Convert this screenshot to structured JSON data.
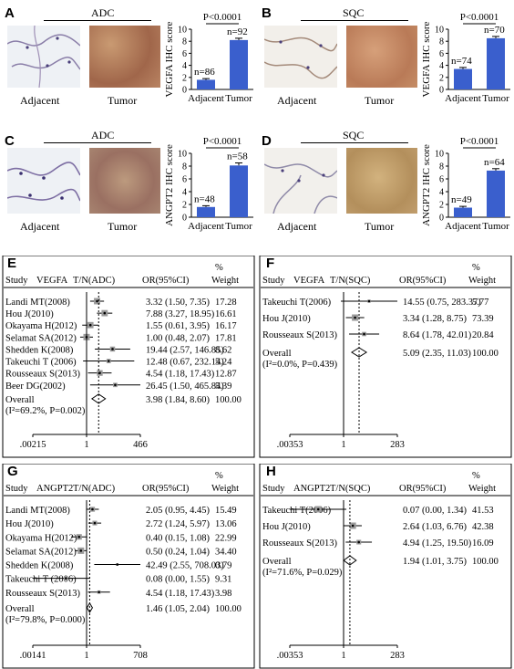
{
  "panels": {
    "A": {
      "letter": "A",
      "group": "ADC",
      "ylabel": "VEGFA IHC score",
      "p": "P<0.0001",
      "ticks": [
        "0",
        "2",
        "4",
        "6",
        "8",
        "10"
      ],
      "cats": [
        "Adjacent",
        "Tumor"
      ],
      "img_labels": [
        "Adjacent",
        "Tumor"
      ],
      "n": [
        "n=86",
        "n=92"
      ]
    },
    "B": {
      "letter": "B",
      "group": "SQC",
      "ylabel": "VEGFA IHC score",
      "p": "P<0.0001",
      "ticks": [
        "0",
        "2",
        "4",
        "6",
        "8",
        "10"
      ],
      "cats": [
        "Adjacent",
        "Tumor"
      ],
      "img_labels": [
        "Adjacent",
        "Tumor"
      ],
      "n": [
        "n=74",
        "n=70"
      ]
    },
    "C": {
      "letter": "C",
      "group": "ADC",
      "ylabel": "ANGPT2 IHC score",
      "p": "P<0.0001",
      "ticks": [
        "0",
        "2",
        "4",
        "6",
        "8",
        "10"
      ],
      "cats": [
        "Adjacent",
        "Tumor"
      ],
      "img_labels": [
        "Adjacent",
        "Tumor"
      ],
      "n": [
        "n=48",
        "n=58"
      ]
    },
    "D": {
      "letter": "D",
      "group": "SQC",
      "ylabel": "ANGPT2 IHC score",
      "p": "P<0.0001",
      "ticks": [
        "0",
        "2",
        "4",
        "6",
        "8",
        "10"
      ],
      "cats": [
        "Adjacent",
        "Tumor"
      ],
      "img_labels": [
        "Adjacent",
        "Tumor"
      ],
      "n": [
        "n=49",
        "n=64"
      ]
    }
  },
  "forest": {
    "E": {
      "letter": "E",
      "header": {
        "study": "Study",
        "gene": "VEGFA",
        "tn": "T/N(ADC)",
        "or": "OR(95%CI)",
        "pct": "%",
        "weight": "Weight"
      },
      "axis": {
        "left": ".00215",
        "mid": "1",
        "right": "466"
      }
    },
    "F": {
      "letter": "F",
      "header": {
        "study": "Study",
        "gene": "VEGFA",
        "tn": "T/N(SQC)",
        "or": "OR(95%CI)",
        "pct": "%",
        "weight": "Weight"
      },
      "axis": {
        "left": ".00353",
        "mid": "1",
        "right": "283"
      }
    },
    "G": {
      "letter": "G",
      "header": {
        "study": "Study",
        "gene": "ANGPT2",
        "tn": "T/N(ADC)",
        "or": "OR(95%CI)",
        "pct": "%",
        "weight": "Weight"
      },
      "axis": {
        "left": ".00141",
        "mid": "1",
        "right": "708"
      }
    },
    "H": {
      "letter": "H",
      "header": {
        "study": "Study",
        "gene": "ANGPT2",
        "tn": "T/N(SQC)",
        "or": "OR(95%CI)",
        "pct": "%",
        "weight": "Weight"
      },
      "axis": {
        "left": ".00353",
        "mid": "1",
        "right": "283"
      }
    }
  },
  "chart_data": [
    {
      "type": "bar",
      "panel": "A",
      "categories": [
        "Adjacent",
        "Tumor"
      ],
      "values": [
        1.6,
        8.2
      ],
      "errors": [
        0.2,
        0.3
      ],
      "ylabel": "VEGFA IHC score",
      "ylim": [
        0,
        10
      ],
      "n": [
        "n=86",
        "n=92"
      ],
      "annotation": "P<0.0001",
      "color": "#3a5fcd"
    },
    {
      "type": "bar",
      "panel": "B",
      "categories": [
        "Adjacent",
        "Tumor"
      ],
      "values": [
        3.4,
        8.5
      ],
      "errors": [
        0.25,
        0.3
      ],
      "ylabel": "VEGFA IHC score",
      "ylim": [
        0,
        10
      ],
      "n": [
        "n=74",
        "n=70"
      ],
      "annotation": "P<0.0001",
      "color": "#3a5fcd"
    },
    {
      "type": "bar",
      "panel": "C",
      "categories": [
        "Adjacent",
        "Tumor"
      ],
      "values": [
        1.6,
        8.1
      ],
      "errors": [
        0.2,
        0.4
      ],
      "ylabel": "ANGPT2 IHC score",
      "ylim": [
        0,
        10
      ],
      "n": [
        "n=48",
        "n=58"
      ],
      "annotation": "P<0.0001",
      "color": "#3a5fcd"
    },
    {
      "type": "bar",
      "panel": "D",
      "categories": [
        "Adjacent",
        "Tumor"
      ],
      "values": [
        1.5,
        7.3
      ],
      "errors": [
        0.2,
        0.3
      ],
      "ylabel": "ANGPT2 IHC score",
      "ylim": [
        0,
        10
      ],
      "n": [
        "n=49",
        "n=64"
      ],
      "annotation": "P<0.0001",
      "color": "#3a5fcd"
    },
    {
      "type": "forest",
      "panel": "E",
      "xlim": [
        0.00215,
        466
      ],
      "log": true,
      "studies": [
        {
          "label": "Landi MT(2008)",
          "or": 3.32,
          "lo": 1.5,
          "hi": 7.35,
          "text": "3.32 (1.50, 7.35)",
          "weight": "17.28"
        },
        {
          "label": "Hou J(2010)",
          "or": 7.88,
          "lo": 3.27,
          "hi": 18.95,
          "text": "7.88 (3.27, 18.95)",
          "weight": "16.61"
        },
        {
          "label": "Okayama H(2012)",
          "or": 1.55,
          "lo": 0.61,
          "hi": 3.95,
          "text": "1.55 (0.61, 3.95)",
          "weight": "16.17"
        },
        {
          "label": "Selamat SA(2012)",
          "or": 1.0,
          "lo": 0.48,
          "hi": 2.07,
          "text": "1.00 (0.48, 2.07)",
          "weight": "17.81"
        },
        {
          "label": "Shedden K(2008)",
          "or": 19.44,
          "lo": 2.57,
          "hi": 146.85,
          "text": "19.44 (2.57, 146.85)",
          "weight": "8.62"
        },
        {
          "label": "Takeuchi T (2006)",
          "or": 12.48,
          "lo": 0.67,
          "hi": 232.14,
          "text": "12.48 (0.67, 232.14)",
          "weight": "5.24"
        },
        {
          "label": "Rousseaux S(2013)",
          "or": 4.54,
          "lo": 1.18,
          "hi": 17.43,
          "text": "4.54 (1.18, 17.43)",
          "weight": "12.87"
        },
        {
          "label": "Beer DG(2002)",
          "or": 26.45,
          "lo": 1.5,
          "hi": 465.84,
          "text": "26.45 (1.50, 465.84)",
          "weight": "5.39"
        }
      ],
      "overall": {
        "label": "Overall",
        "het": "(I²=69.2%, P=0.002)",
        "or": 3.98,
        "lo": 1.84,
        "hi": 8.6,
        "text": "3.98 (1.84, 8.60)",
        "weight": "100.00"
      }
    },
    {
      "type": "forest",
      "panel": "F",
      "xlim": [
        0.00353,
        283
      ],
      "log": true,
      "studies": [
        {
          "label": "Takeuchi T(2006)",
          "or": 14.55,
          "lo": 0.75,
          "hi": 283.37,
          "text": "14.55 (0.75, 283.37)",
          "weight": "5.77"
        },
        {
          "label": "Hou J(2010)",
          "or": 3.34,
          "lo": 1.28,
          "hi": 8.75,
          "text": "3.34 (1.28, 8.75)",
          "weight": "73.39"
        },
        {
          "label": "Rousseaux S(2013)",
          "or": 8.64,
          "lo": 1.78,
          "hi": 42.01,
          "text": "8.64 (1.78, 42.01)",
          "weight": "20.84"
        }
      ],
      "overall": {
        "label": "Overall",
        "het": "(I²=0.0%, P=0.439)",
        "or": 5.09,
        "lo": 2.35,
        "hi": 11.03,
        "text": "5.09 (2.35, 11.03)",
        "weight": "100.00"
      }
    },
    {
      "type": "forest",
      "panel": "G",
      "xlim": [
        0.00141,
        708
      ],
      "log": true,
      "studies": [
        {
          "label": "Landi MT(2008)",
          "or": 2.05,
          "lo": 0.95,
          "hi": 4.45,
          "text": "2.05 (0.95, 4.45)",
          "weight": "15.49"
        },
        {
          "label": "Hou J(2010)",
          "or": 2.72,
          "lo": 1.24,
          "hi": 5.97,
          "text": "2.72 (1.24, 5.97)",
          "weight": "13.06"
        },
        {
          "label": "Okayama H(2012)",
          "or": 0.4,
          "lo": 0.15,
          "hi": 1.08,
          "text": "0.40 (0.15, 1.08)",
          "weight": "22.99"
        },
        {
          "label": "Selamat SA(2012)",
          "or": 0.5,
          "lo": 0.24,
          "hi": 1.04,
          "text": "0.50 (0.24, 1.04)",
          "weight": "34.40"
        },
        {
          "label": "Shedden K(2008)",
          "or": 42.49,
          "lo": 2.55,
          "hi": 708.03,
          "text": "42.49 (2.55, 708.03)",
          "weight": "0.79"
        },
        {
          "label": "Takeuchi T (2006)",
          "or": 0.08,
          "lo": 0.0,
          "hi": 1.55,
          "text": "0.08 (0.00, 1.55)",
          "weight": "9.31"
        },
        {
          "label": "Rousseaux S(2013)",
          "or": 4.54,
          "lo": 1.18,
          "hi": 17.43,
          "text": "4.54 (1.18, 17.43)",
          "weight": "3.98"
        }
      ],
      "overall": {
        "label": "Overall",
        "het": "(I²=79.8%, P=0.000)",
        "or": 1.46,
        "lo": 1.05,
        "hi": 2.04,
        "text": "1.46 (1.05, 2.04)",
        "weight": "100.00"
      }
    },
    {
      "type": "forest",
      "panel": "H",
      "xlim": [
        0.00353,
        283
      ],
      "log": true,
      "studies": [
        {
          "label": "Takeuchi T(2006)",
          "or": 0.07,
          "lo": 0.0,
          "hi": 1.34,
          "text": "0.07 (0.00, 1.34)",
          "weight": "41.53"
        },
        {
          "label": "Hou J(2010)",
          "or": 2.64,
          "lo": 1.03,
          "hi": 6.76,
          "text": "2.64 (1.03, 6.76)",
          "weight": "42.38"
        },
        {
          "label": "Rousseaux S(2013)",
          "or": 4.94,
          "lo": 1.25,
          "hi": 19.5,
          "text": "4.94 (1.25, 19.50)",
          "weight": "16.09"
        }
      ],
      "overall": {
        "label": "Overall",
        "het": "(I²=71.6%, P=0.029)",
        "or": 1.94,
        "lo": 1.01,
        "hi": 3.75,
        "text": "1.94 (1.01, 3.75)",
        "weight": "100.00"
      }
    }
  ]
}
